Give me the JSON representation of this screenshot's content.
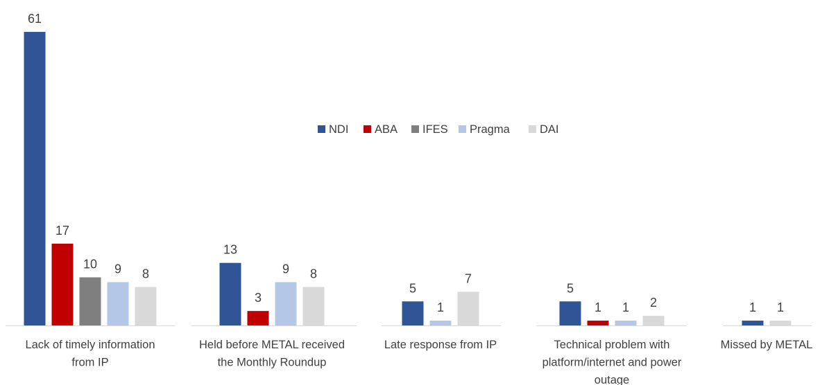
{
  "chart_data": {
    "type": "bar",
    "title": "",
    "xlabel": "",
    "ylabel": "",
    "ylim": [
      0,
      61
    ],
    "grid": false,
    "legend_position": "center",
    "categories": [
      [
        "Lack of timely information",
        "from IP"
      ],
      [
        "Held before METAL received",
        "the Monthly Roundup"
      ],
      [
        "Late response from IP"
      ],
      [
        "Technical problem with",
        "platform/internet and power",
        "outage"
      ],
      [
        "Missed by METAL"
      ]
    ],
    "series": [
      {
        "name": "NDI",
        "color": "#2f5597",
        "values": [
          61,
          13,
          5,
          5,
          1
        ]
      },
      {
        "name": "ABA",
        "color": "#c00000",
        "values": [
          17,
          3,
          null,
          1,
          null
        ]
      },
      {
        "name": "IFES",
        "color": "#7f7f7f",
        "values": [
          10,
          null,
          null,
          null,
          null
        ]
      },
      {
        "name": "Pragma",
        "color": "#b4c7e7",
        "values": [
          9,
          9,
          1,
          1,
          null
        ]
      },
      {
        "name": "DAI",
        "color": "#d9d9d9",
        "values": [
          8,
          8,
          7,
          2,
          1
        ]
      }
    ]
  }
}
